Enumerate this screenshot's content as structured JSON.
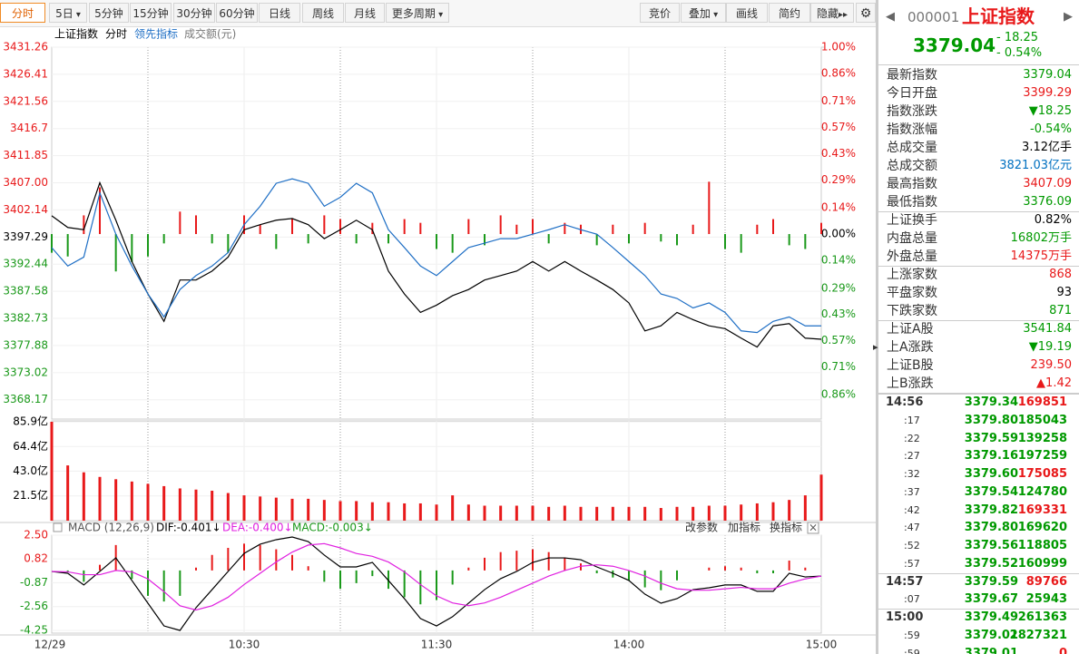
{
  "toolbar": {
    "left": [
      "分时",
      "5日",
      "5分钟",
      "15分钟",
      "30分钟",
      "60分钟",
      "日线",
      "周线",
      "月线",
      "更多周期"
    ],
    "right": [
      "竞价",
      "叠加",
      "画线",
      "简约",
      "隐藏"
    ]
  },
  "chart_data": [
    {
      "type": "line",
      "title": "上证指数",
      "note": "成交额(元)",
      "ylim": [
        3364.72,
        3431.26
      ],
      "yticks": [
        3431.26,
        3426.41,
        3421.56,
        3416.7,
        3411.85,
        {
          "value": 3407,
          "label": "3407.00"
        },
        3402.14,
        3397.29,
        3392.44,
        3387.58,
        3382.73,
        3377.88,
        3373.02,
        3368.17
      ],
      "y2lim": [
        -0.99,
        1.0
      ],
      "y2ticks": [
        {
          "value": 1.0,
          "label": "1.00%"
        },
        {
          "value": 0.86,
          "label": "0.86%"
        },
        {
          "value": 0.71,
          "label": "0.71%"
        },
        {
          "value": 0.57,
          "label": "0.57%"
        },
        {
          "value": 0.43,
          "label": "0.43%"
        },
        {
          "value": 0.29,
          "label": "0.29%"
        },
        {
          "value": 0.14,
          "label": "0.14%"
        },
        {
          "value": 0,
          "label": "0.00%"
        },
        {
          "value": -0.14,
          "label": "0.14%"
        },
        {
          "value": -0.29,
          "label": "0.29%"
        },
        {
          "value": -0.43,
          "label": "0.43%"
        },
        {
          "value": -0.57,
          "label": "0.57%"
        },
        {
          "value": -0.71,
          "label": "0.71%"
        },
        {
          "value": -0.86,
          "label": "0.86%"
        }
      ],
      "grid": true,
      "series": [
        {
          "name": "分时",
          "color": "#000000",
          "values": [
            3401.1,
            3399.0,
            3398.6,
            3407.0,
            3400.3,
            3392.9,
            3387.1,
            3382.2,
            3389.6,
            3389.6,
            3391.2,
            3393.7,
            3398.6,
            3399.5,
            3400.3,
            3400.6,
            3399.5,
            3397.0,
            3398.6,
            3400.3,
            3398.6,
            3391.2,
            3387.1,
            3383.8,
            3385.1,
            3386.8,
            3387.9,
            3389.6,
            3390.4,
            3391.2,
            3392.9,
            3391.2,
            3392.9,
            3391.2,
            3389.6,
            3387.9,
            3385.5,
            3380.5,
            3381.4,
            3383.8,
            3382.5,
            3381.4,
            3380.9,
            3379.2,
            3377.6,
            3381.4,
            3381.8,
            3379.2,
            3379.0
          ]
        },
        {
          "name": "领先指标",
          "color": "#1f6fc5",
          "values": [
            3395.4,
            3392.1,
            3393.7,
            3405.2,
            3397.8,
            3392.1,
            3387.1,
            3383.0,
            3387.9,
            3390.4,
            3392.1,
            3394.5,
            3399.5,
            3402.8,
            3406.9,
            3407.7,
            3406.9,
            3402.8,
            3404.4,
            3406.9,
            3405.2,
            3398.6,
            3395.4,
            3392.1,
            3390.4,
            3392.9,
            3395.4,
            3396.2,
            3397.0,
            3397.0,
            3397.8,
            3398.6,
            3399.5,
            3398.6,
            3397.8,
            3395.4,
            3392.9,
            3390.4,
            3387.1,
            3386.3,
            3384.6,
            3385.5,
            3383.8,
            3380.5,
            3380.2,
            3382.2,
            3383.0,
            3381.4,
            3381.4
          ]
        },
        {
          "axis": "y2",
          "up_color": "#e8191a",
          "down_color": "#1a991a",
          "values": [
            -0.1,
            -0.12,
            0.1,
            0.25,
            -0.2,
            -0.15,
            -0.12,
            -0.05,
            0.12,
            0.1,
            -0.05,
            -0.1,
            0.1,
            0.05,
            -0.08,
            0.08,
            -0.05,
            0.1,
            0.08,
            -0.05,
            0.06,
            -0.05,
            0.08,
            0.06,
            -0.08,
            -0.1,
            0.08,
            -0.06,
            0.1,
            0.05,
            0.08,
            -0.05,
            0.06,
            0.05,
            -0.06,
            0.05,
            -0.05,
            0.06,
            -0.04,
            -0.06,
            0.05,
            0.28,
            -0.08,
            -0.1,
            0.05,
            0.08,
            -0.06,
            -0.08,
            0.06
          ]
        }
      ]
    },
    {
      "type": "bar",
      "ylim": [
        0,
        85.9
      ],
      "yticks": [
        {
          "value": 85.9,
          "label": "85.9亿"
        },
        {
          "value": 64.4,
          "label": "64.4亿"
        },
        {
          "value": 43.0,
          "label": "43.0亿"
        },
        {
          "value": 21.5,
          "label": "21.5亿"
        }
      ],
      "color": "#e8191a",
      "values": [
        85.9,
        48,
        42,
        38,
        36,
        34,
        32,
        30,
        28,
        27,
        26,
        24,
        22,
        21,
        20,
        19,
        19,
        18,
        17,
        17,
        16,
        16,
        15,
        15,
        14,
        22,
        14,
        13,
        13,
        13,
        13,
        12,
        13,
        12,
        12,
        12,
        12,
        12,
        11,
        12,
        12,
        13,
        13,
        14,
        15,
        16,
        18,
        22,
        40
      ]
    },
    {
      "type": "macd",
      "title": "MACD (12,26,9)",
      "buttons": [
        "改参数",
        "加指标",
        "换指标"
      ],
      "ylim": [
        -4.25,
        2.5
      ],
      "yticks": [
        {
          "value": 2.5,
          "label": "2.50"
        },
        0.82,
        -0.87,
        -2.56,
        -4.25
      ],
      "series": [
        {
          "name": "DIF:-0.401↓",
          "color": "#000000",
          "values": [
            -0.07,
            -0.2,
            -1.03,
            -0.07,
            0.89,
            -0.71,
            -2.32,
            -3.93,
            -4.25,
            -2.64,
            -1.36,
            -0.07,
            1.21,
            1.86,
            2.18,
            2.37,
            2.05,
            1.09,
            0.25,
            0.25,
            0.57,
            -0.71,
            -2.0,
            -3.41,
            -3.93,
            -3.28,
            -2.32,
            -1.36,
            -0.58,
            -0.07,
            0.57,
            0.89,
            0.89,
            0.76,
            0.25,
            -0.2,
            -0.71,
            -1.68,
            -2.32,
            -2.0,
            -1.36,
            -1.23,
            -1.03,
            -1.03,
            -1.48,
            -1.48,
            -0.2,
            -0.46,
            -0.4
          ]
        },
        {
          "name": "DEA:-0.400↓",
          "color": "#e020e0",
          "values": [
            -0.07,
            -0.1,
            -0.3,
            -0.3,
            0.0,
            -0.1,
            -0.6,
            -1.5,
            -2.5,
            -2.8,
            -2.5,
            -1.9,
            -1.0,
            -0.2,
            0.6,
            1.3,
            1.8,
            1.9,
            1.6,
            1.2,
            1.0,
            0.6,
            -0.1,
            -1.0,
            -1.8,
            -2.3,
            -2.5,
            -2.3,
            -1.9,
            -1.4,
            -0.9,
            -0.4,
            0.0,
            0.3,
            0.4,
            0.3,
            0.0,
            -0.4,
            -0.9,
            -1.3,
            -1.4,
            -1.4,
            -1.3,
            -1.2,
            -1.3,
            -1.3,
            -0.9,
            -0.6,
            -0.4
          ]
        },
        {
          "name": "MACD:-0.003↓",
          "color": "#1a991a",
          "up_color": "#e8191a",
          "values": [
            0,
            -0.1,
            -0.8,
            0.4,
            1.8,
            -0.6,
            -1.8,
            -2.2,
            -1.8,
            0.2,
            1.1,
            1.6,
            1.9,
            1.8,
            1.5,
            1.1,
            0.3,
            -0.8,
            -1.3,
            -0.9,
            -0.4,
            -1.3,
            -1.9,
            -2.4,
            -2.1,
            -1.0,
            0.2,
            0.9,
            1.3,
            1.4,
            1.5,
            1.3,
            0.9,
            0.5,
            -0.2,
            -0.5,
            -0.7,
            -1.2,
            -1.4,
            -0.7,
            0.0,
            0.2,
            0.3,
            0.2,
            -0.2,
            -0.2,
            0.7,
            0.2,
            0.0
          ]
        }
      ]
    }
  ],
  "time_labels": [
    "12/29",
    "10:30",
    "11:30",
    "14:00",
    "15:00"
  ],
  "quote": {
    "code": "000001",
    "name": "上证指数",
    "price": "3379.04",
    "change": "- 18.25",
    "pct": "- 0.54%"
  },
  "stats": [
    {
      "label": "最新指数",
      "value": "3379.04",
      "color": "#009900"
    },
    {
      "label": "今日开盘",
      "value": "3399.29",
      "color": "#e8191a"
    },
    {
      "label": "指数涨跌",
      "value": "▼18.25",
      "color": "#009900"
    },
    {
      "label": "指数涨幅",
      "value": "-0.54%",
      "color": "#009900"
    },
    {
      "label": "总成交量",
      "value": "3.12亿手",
      "color": "#000000"
    },
    {
      "label": "总成交额",
      "value": "3821.03亿元",
      "color": "#0070c0"
    },
    {
      "label": "最高指数",
      "value": "3407.09",
      "color": "#e8191a"
    },
    {
      "label": "最低指数",
      "value": "3376.09",
      "color": "#009900"
    },
    {
      "label": "上证换手",
      "value": "0.82%",
      "color": "#000000"
    },
    {
      "label": "内盘总量",
      "value": "16802万手",
      "color": "#009900"
    },
    {
      "label": "外盘总量",
      "value": "14375万手",
      "color": "#e8191a"
    },
    {
      "label": "上涨家数",
      "value": "868",
      "color": "#e8191a"
    },
    {
      "label": "平盘家数",
      "value": "93",
      "color": "#000000"
    },
    {
      "label": "下跌家数",
      "value": "871",
      "color": "#009900"
    },
    {
      "label": "上证A股",
      "value": "3541.84",
      "color": "#009900"
    },
    {
      "label": "上A涨跌",
      "value": "▼19.19",
      "color": "#009900"
    },
    {
      "label": "上证B股",
      "value": "239.50",
      "color": "#e8191a"
    },
    {
      "label": "上B涨跌",
      "value": "▲1.42",
      "color": "#e8191a"
    }
  ],
  "trades": [
    {
      "time": "14:56",
      "price": "3379.34",
      "volume": "169851",
      "color": "#e8191a"
    },
    {
      "time": ":17",
      "price": "3379.80",
      "volume": "185043",
      "color": "#009900"
    },
    {
      "time": ":22",
      "price": "3379.59",
      "volume": "139258",
      "color": "#009900"
    },
    {
      "time": ":27",
      "price": "3379.16",
      "volume": "197259",
      "color": "#009900"
    },
    {
      "time": ":32",
      "price": "3379.60",
      "volume": "175085",
      "color": "#e8191a"
    },
    {
      "time": ":37",
      "price": "3379.54",
      "volume": "124780",
      "color": "#009900"
    },
    {
      "time": ":42",
      "price": "3379.82",
      "volume": "169331",
      "color": "#e8191a"
    },
    {
      "time": ":47",
      "price": "3379.80",
      "volume": "169620",
      "color": "#009900"
    },
    {
      "time": ":52",
      "price": "3379.56",
      "volume": "118805",
      "color": "#009900"
    },
    {
      "time": ":57",
      "price": "3379.52",
      "volume": "160999",
      "color": "#009900"
    },
    {
      "time": "14:57",
      "price": "3379.59",
      "volume": "89766",
      "color": "#e8191a"
    },
    {
      "time": ":07",
      "price": "3379.67",
      "volume": "25943",
      "color": "#009900"
    },
    {
      "time": "15:00",
      "price": "3379.49",
      "volume": "261363",
      "color": "#009900"
    },
    {
      "time": ":59",
      "price": "3379.01",
      "volume": "2827321",
      "color": "#009900"
    },
    {
      "time": ":59",
      "price": "3379.01",
      "volume": "0",
      "color": "#e8191a"
    }
  ]
}
